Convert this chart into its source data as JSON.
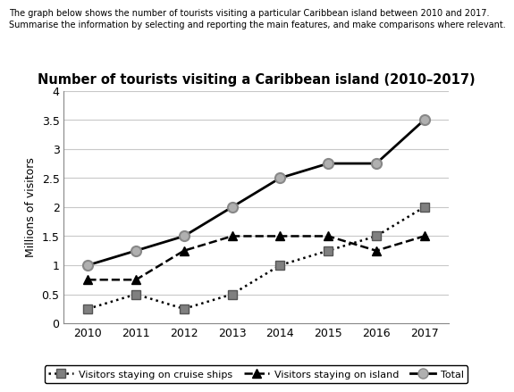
{
  "title": "Number of tourists visiting a Caribbean island (2010–2017)",
  "subtitle_line1": "The graph below shows the number of tourists visiting a particular Caribbean island between 2010 and 2017.",
  "subtitle_line2": "Summarise the information by selecting and reporting the main features, and make comparisons where relevant.",
  "ylabel": "Millions of visitors",
  "years": [
    2010,
    2011,
    2012,
    2013,
    2014,
    2015,
    2016,
    2017
  ],
  "cruise_ships": [
    0.25,
    0.5,
    0.25,
    0.5,
    1.0,
    1.25,
    1.5,
    2.0
  ],
  "on_island": [
    0.75,
    0.75,
    1.25,
    1.5,
    1.5,
    1.5,
    1.25,
    1.5
  ],
  "total": [
    1.0,
    1.25,
    1.5,
    2.0,
    2.5,
    2.75,
    2.75,
    3.5
  ],
  "ylim": [
    0,
    4
  ],
  "yticks": [
    0,
    0.5,
    1.0,
    1.5,
    2.0,
    2.5,
    3.0,
    3.5,
    4.0
  ],
  "color_cruise": "#000000",
  "color_island": "#000000",
  "color_total": "#000000",
  "marker_cruise_face": "#808080",
  "marker_total_face": "#b0b0b0",
  "marker_total_edge": "#888888",
  "background_color": "#ffffff",
  "grid_color": "#c8c8c8"
}
